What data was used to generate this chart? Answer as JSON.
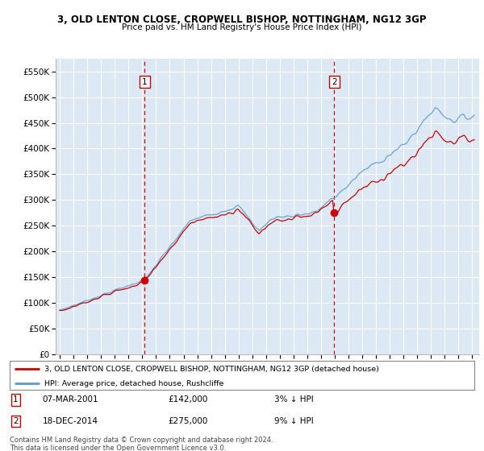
{
  "title1": "3, OLD LENTON CLOSE, CROPWELL BISHOP, NOTTINGHAM, NG12 3GP",
  "title2": "Price paid vs. HM Land Registry's House Price Index (HPI)",
  "legend_line1": "3, OLD LENTON CLOSE, CROPWELL BISHOP, NOTTINGHAM, NG12 3GP (detached house)",
  "legend_line2": "HPI: Average price, detached house, Rushcliffe",
  "annotation1_label": "1",
  "annotation1_date": "07-MAR-2001",
  "annotation1_price": "£142,000",
  "annotation1_hpi": "3% ↓ HPI",
  "annotation2_label": "2",
  "annotation2_date": "18-DEC-2014",
  "annotation2_price": "£275,000",
  "annotation2_hpi": "9% ↓ HPI",
  "footer": "Contains HM Land Registry data © Crown copyright and database right 2024.\nThis data is licensed under the Open Government Licence v3.0.",
  "hpi_color": "#5b9bd5",
  "price_color": "#cc0000",
  "annotation_vline_color": "#cc0000",
  "background_color": "#dce9f5",
  "ylim": [
    0,
    575000
  ],
  "yticks": [
    0,
    50000,
    100000,
    150000,
    200000,
    250000,
    300000,
    350000,
    400000,
    450000,
    500000,
    550000
  ],
  "price1": 142000,
  "price2": 275000,
  "t1_year": 2001.178,
  "t2_year": 2014.962
}
